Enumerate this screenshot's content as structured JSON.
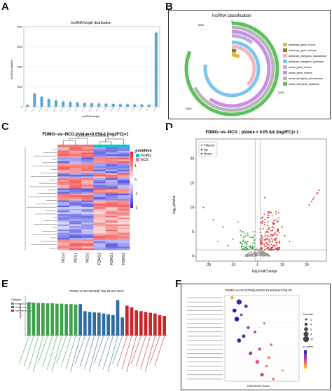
{
  "panels": {
    "a": {
      "letter": "A"
    },
    "b": {
      "letter": "B"
    },
    "c": {
      "letter": "C"
    },
    "d": {
      "letter": "D"
    },
    "e": {
      "letter": "E"
    },
    "f": {
      "letter": "F"
    }
  },
  "chart_data": [
    {
      "id": "A",
      "type": "bar",
      "title": "lncRNA length distribution",
      "xlabel": "lncRNA length",
      "ylabel": "lncRNA number",
      "ylim": [
        0,
        4000
      ],
      "yticks": [
        0,
        1000,
        2000,
        3000,
        4000
      ],
      "values": [
        90,
        650,
        500,
        380,
        310,
        260,
        230,
        200,
        185,
        170,
        160,
        150,
        140,
        130,
        120,
        115,
        110,
        105,
        3700
      ],
      "color": "#5aa6d8"
    },
    {
      "id": "B",
      "type": "radial-bar",
      "title": "lncRNA classification",
      "ticks": [
        "0",
        "1000",
        "2000",
        "3000"
      ],
      "legend_position": "right",
      "categories": [
        "antisense_genic_exonic",
        "antisense_genic_intronic",
        "antisense_intergenic_downstream",
        "antisense_intergenic_upstream",
        "sense_genic_exonic",
        "sense_genic_intronic",
        "sense_intergenic_downstream",
        "sense_intergenic_upstream"
      ],
      "values": [
        350,
        150,
        1500,
        3100,
        420,
        2400,
        2700,
        3250
      ],
      "colors": [
        "#e8b82a",
        "#8a7e1e",
        "#f4b6b9",
        "#7cc6ee",
        "#b8b0d8",
        "#c98ee6",
        "#b7b7b7",
        "#5cc25b"
      ]
    },
    {
      "id": "C",
      "type": "heatmap",
      "title": "FDMG--vs--NCG;pValue<0.05&& |log2FC|>1",
      "columns": [
        "NCG2",
        "NCG1",
        "NCG3",
        "FDMG2",
        "FDMG1",
        "FDMG3"
      ],
      "groups": [
        "NCG",
        "NCG",
        "NCG",
        "FDMG",
        "FDMG",
        "FDMG"
      ],
      "legend_title": "condition",
      "legend_entries": [
        "FDMG",
        "NCG"
      ],
      "legend_colors": [
        "#00c8c8",
        "#f07a7a"
      ],
      "scale_ticks": [
        "2",
        "1",
        "0",
        "-1",
        "-2"
      ]
    },
    {
      "id": "D",
      "type": "scatter",
      "title": "FDMG--vs--NCG ; pValue < 0.05 && |log2FC|> 1",
      "xlabel": "log₂FoldChange",
      "ylabel": "-log₁₀pValue",
      "xticks": [
        -20,
        -10,
        0,
        10,
        20
      ],
      "yticks": [
        0,
        5,
        10,
        15,
        20
      ],
      "xlim": [
        -25,
        28
      ],
      "ylim": [
        -1,
        24
      ],
      "legend": [
        "Filtered",
        "Up",
        "Down"
      ],
      "legend_colors": [
        "#9a9a9a",
        "#e02424",
        "#2f9a2f"
      ],
      "up_points": [
        [
          21,
          10.5
        ],
        [
          22,
          11.2
        ],
        [
          23,
          12
        ],
        [
          24,
          12.8
        ],
        [
          25,
          13.5
        ],
        [
          22.5,
          11.6
        ],
        [
          24.5,
          13
        ],
        [
          3,
          12
        ],
        [
          5,
          9
        ],
        [
          2,
          8
        ],
        [
          6,
          6
        ],
        [
          8,
          7
        ],
        [
          4,
          5
        ],
        [
          10,
          6
        ],
        [
          2,
          4
        ],
        [
          6,
          3
        ],
        [
          4,
          2.5
        ],
        [
          9,
          3
        ],
        [
          13,
          3
        ],
        [
          3,
          2
        ],
        [
          7,
          4.5
        ],
        [
          11,
          4.2
        ]
      ],
      "down_points": [
        [
          -22,
          10
        ],
        [
          -18,
          7.5
        ],
        [
          -14,
          6
        ],
        [
          -8,
          7
        ],
        [
          -6,
          5
        ],
        [
          -4,
          3
        ],
        [
          -3,
          2
        ],
        [
          -10,
          3.5
        ],
        [
          -12,
          2.2
        ],
        [
          -2,
          1.6
        ],
        [
          -5,
          1.8
        ],
        [
          -7,
          2.8
        ],
        [
          -16,
          3
        ]
      ]
    },
    {
      "id": "E",
      "type": "bar",
      "title": "FDMG-vs-NCG(Total) Top 30 GO Term",
      "ylabel": "-log10 pValue",
      "legend_title": "Category",
      "legend": [
        "biological_process",
        "cellular_component",
        "molecular_function"
      ],
      "legend_colors": [
        "#3fa34d",
        "#2e6da4",
        "#c62828"
      ],
      "series": [
        {
          "name": "biological_process",
          "values": [
            8.5,
            8.4,
            8.3,
            8.3,
            8.2,
            8.2,
            8.1,
            8.1,
            8.0,
            8.0,
            7.9
          ]
        },
        {
          "name": "cellular_component",
          "values": [
            8.0,
            6.2,
            6.0,
            5.9,
            5.8,
            5.6,
            5.4,
            5.2,
            9.0,
            4.6
          ]
        },
        {
          "name": "molecular_function",
          "values": [
            7.6,
            7.2,
            6.4,
            6.2,
            6.0,
            5.8,
            5.6,
            5.2,
            5.0
          ]
        }
      ]
    },
    {
      "id": "F",
      "type": "scatter",
      "title": "FDMG-vs-NCG(Total) KEGG Enrichment top 20",
      "xlabel": "Enrichment Score",
      "legend_number_title": "Number",
      "legend_number_values": [
        2,
        4,
        6,
        8,
        10
      ],
      "legend_color_title": "p_value",
      "legend_color_stops": [
        "#1a1aa6",
        "#7a3aa6",
        "#c23aa6",
        "#f08060",
        "#f6c230"
      ],
      "terms_count": 20,
      "points": [
        {
          "score": 1.2,
          "n": 4,
          "p": 0.9
        },
        {
          "score": 1.5,
          "n": 8,
          "p": 0.1
        },
        {
          "score": 1.8,
          "n": 5,
          "p": 0.2
        },
        {
          "score": 1.3,
          "n": 6,
          "p": 0.05
        },
        {
          "score": 1.6,
          "n": 3,
          "p": 0.3
        },
        {
          "score": 1.4,
          "n": 7,
          "p": 0.02
        },
        {
          "score": 2.6,
          "n": 2,
          "p": 0.6
        },
        {
          "score": 1.9,
          "n": 4,
          "p": 0.4
        },
        {
          "score": 2.2,
          "n": 3,
          "p": 0.45
        },
        {
          "score": 1.7,
          "n": 5,
          "p": 0.15
        },
        {
          "score": 1.5,
          "n": 6,
          "p": 0.08
        },
        {
          "score": 2.9,
          "n": 3,
          "p": 0.7
        },
        {
          "score": 2.4,
          "n": 4,
          "p": 0.55
        },
        {
          "score": 2.0,
          "n": 5,
          "p": 0.35
        },
        {
          "score": 2.8,
          "n": 4,
          "p": 0.8
        },
        {
          "score": 2.3,
          "n": 6,
          "p": 0.65
        },
        {
          "score": 2.7,
          "n": 3,
          "p": 0.75
        },
        {
          "score": 3.4,
          "n": 2,
          "p": 0.85
        },
        {
          "score": 2.5,
          "n": 5,
          "p": 0.5
        },
        {
          "score": 3.0,
          "n": 3,
          "p": 0.7
        }
      ]
    }
  ]
}
